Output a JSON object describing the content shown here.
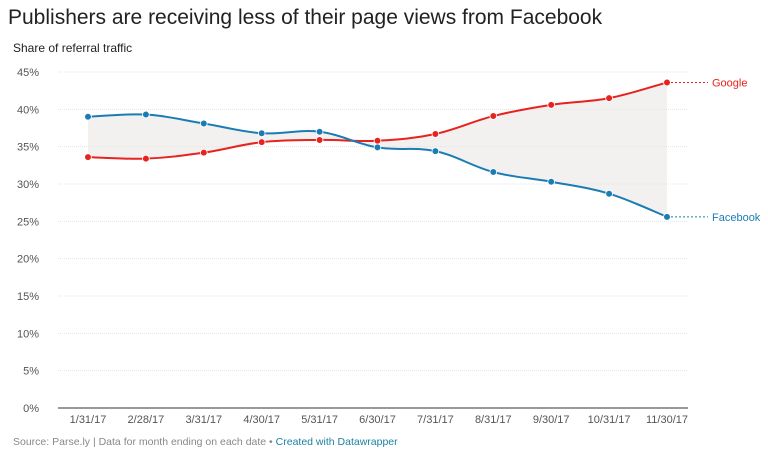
{
  "title": "Publishers are receiving less of their page views from Facebook",
  "subtitle": "Share of referral traffic",
  "source": {
    "label": "Source: Parse.ly | Data for month ending on each date",
    "separator": " • ",
    "credit": "Created with Datawrapper"
  },
  "colors": {
    "google": "#e8221e",
    "facebook": "#1b7cb4",
    "gap_fill": "#e9e6e3",
    "grid": "#e3e3e3",
    "axis_text": "#555555"
  },
  "chart_data": {
    "type": "line",
    "title": "Publishers are receiving less of their page views from Facebook",
    "ylabel": "Share of referral traffic",
    "xlabel": "",
    "ylim": [
      0,
      45
    ],
    "yticks": [
      "0%",
      "5%",
      "10%",
      "15%",
      "20%",
      "25%",
      "30%",
      "35%",
      "40%",
      "45%"
    ],
    "ytick_values": [
      0,
      5,
      10,
      15,
      20,
      25,
      30,
      35,
      40,
      45
    ],
    "grid": true,
    "legend": "direct-labels-right",
    "categories": [
      "1/31/17",
      "2/28/17",
      "3/31/17",
      "4/30/17",
      "5/31/17",
      "6/30/17",
      "7/31/17",
      "8/31/17",
      "9/30/17",
      "10/31/17",
      "11/30/17"
    ],
    "series": [
      {
        "name": "Google",
        "color": "#e8221e",
        "values": [
          33.6,
          33.4,
          34.2,
          35.6,
          35.9,
          35.8,
          36.7,
          39.1,
          40.6,
          41.5,
          43.6
        ]
      },
      {
        "name": "Facebook",
        "color": "#1b7cb4",
        "values": [
          39.0,
          39.3,
          38.1,
          36.8,
          37.0,
          34.9,
          34.4,
          31.6,
          30.3,
          28.7,
          25.6
        ]
      }
    ]
  }
}
